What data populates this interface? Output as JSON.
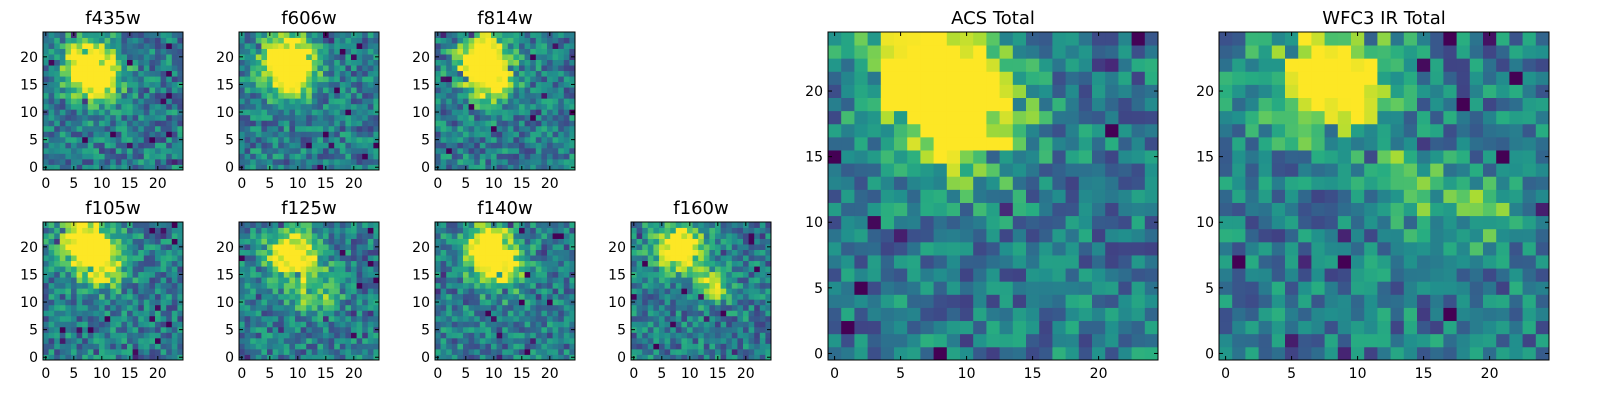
{
  "chart_data": {
    "type": "heatmap",
    "colormap": "viridis",
    "panels": [
      {
        "id": "f435w",
        "title": "f435w",
        "xlim": [
          0,
          24
        ],
        "ylim": [
          0,
          24
        ],
        "xticks": [
          0,
          5,
          10,
          15,
          20
        ],
        "yticks": [
          0,
          5,
          10,
          15,
          20
        ],
        "source_peaks": [
          [
            8,
            19,
            0.75,
            3
          ],
          [
            9,
            16,
            0.6,
            3
          ]
        ],
        "missing_corner": false
      },
      {
        "id": "f606w",
        "title": "f606w",
        "xlim": [
          0,
          24
        ],
        "ylim": [
          0,
          24
        ],
        "xticks": [
          0,
          5,
          10,
          15,
          20
        ],
        "yticks": [
          0,
          5,
          10,
          15,
          20
        ],
        "source_peaks": [
          [
            8,
            20,
            0.8,
            3
          ],
          [
            9,
            16,
            0.6,
            3
          ]
        ],
        "missing_corner": false
      },
      {
        "id": "f814w",
        "title": "f814w",
        "xlim": [
          0,
          24
        ],
        "ylim": [
          0,
          24
        ],
        "xticks": [
          0,
          5,
          10,
          15,
          20
        ],
        "yticks": [
          0,
          5,
          10,
          15,
          20
        ],
        "source_peaks": [
          [
            8,
            20,
            0.8,
            3
          ],
          [
            9,
            16,
            0.6,
            3
          ]
        ],
        "missing_corner": false
      },
      {
        "id": "f105w",
        "title": "f105w",
        "xlim": [
          0,
          24
        ],
        "ylim": [
          0,
          24
        ],
        "xticks": [
          0,
          5,
          10,
          15,
          20
        ],
        "yticks": [
          0,
          5,
          10,
          15,
          20
        ],
        "source_peaks": [
          [
            7,
            21,
            0.8,
            3
          ],
          [
            10,
            17,
            0.6,
            3
          ]
        ],
        "missing_corner": true
      },
      {
        "id": "f125w",
        "title": "f125w",
        "xlim": [
          0,
          24
        ],
        "ylim": [
          0,
          24
        ],
        "xticks": [
          0,
          5,
          10,
          15,
          20
        ],
        "yticks": [
          0,
          5,
          10,
          15,
          20
        ],
        "source_peaks": [
          [
            9,
            19,
            0.8,
            3
          ],
          [
            13,
            12,
            0.4,
            3
          ]
        ],
        "missing_corner": true
      },
      {
        "id": "f140w",
        "title": "f140w",
        "xlim": [
          0,
          24
        ],
        "ylim": [
          0,
          24
        ],
        "xticks": [
          0,
          5,
          10,
          15,
          20
        ],
        "yticks": [
          0,
          5,
          10,
          15,
          20
        ],
        "source_peaks": [
          [
            9,
            20,
            0.8,
            3
          ],
          [
            11,
            16,
            0.5,
            3
          ]
        ],
        "missing_corner": true
      },
      {
        "id": "f160w",
        "title": "f160w",
        "xlim": [
          0,
          24
        ],
        "ylim": [
          0,
          24
        ],
        "xticks": [
          0,
          5,
          10,
          15,
          20
        ],
        "yticks": [
          0,
          5,
          10,
          15,
          20
        ],
        "source_peaks": [
          [
            8,
            20,
            0.8,
            3
          ],
          [
            14,
            13,
            0.6,
            2
          ]
        ],
        "missing_corner": true
      },
      {
        "id": "acs-total",
        "title": "ACS Total",
        "xlim": [
          0,
          24
        ],
        "ylim": [
          0,
          24
        ],
        "xticks": [
          0,
          5,
          10,
          15,
          20
        ],
        "yticks": [
          0,
          5,
          10,
          15,
          20
        ],
        "source_peaks": [
          [
            7,
            22,
            0.8,
            3
          ],
          [
            10,
            18,
            0.8,
            3
          ]
        ],
        "missing_corner": false
      },
      {
        "id": "wfc3-ir-total",
        "title": "WFC3 IR Total",
        "xlim": [
          0,
          24
        ],
        "ylim": [
          0,
          24
        ],
        "xticks": [
          0,
          5,
          10,
          15,
          20
        ],
        "yticks": [
          0,
          5,
          10,
          15,
          20
        ],
        "source_peaks": [
          [
            8,
            21,
            0.9,
            3
          ],
          [
            14,
            13,
            0.4,
            2
          ],
          [
            20,
            11,
            0.3,
            2
          ]
        ],
        "missing_corner": true
      }
    ]
  }
}
